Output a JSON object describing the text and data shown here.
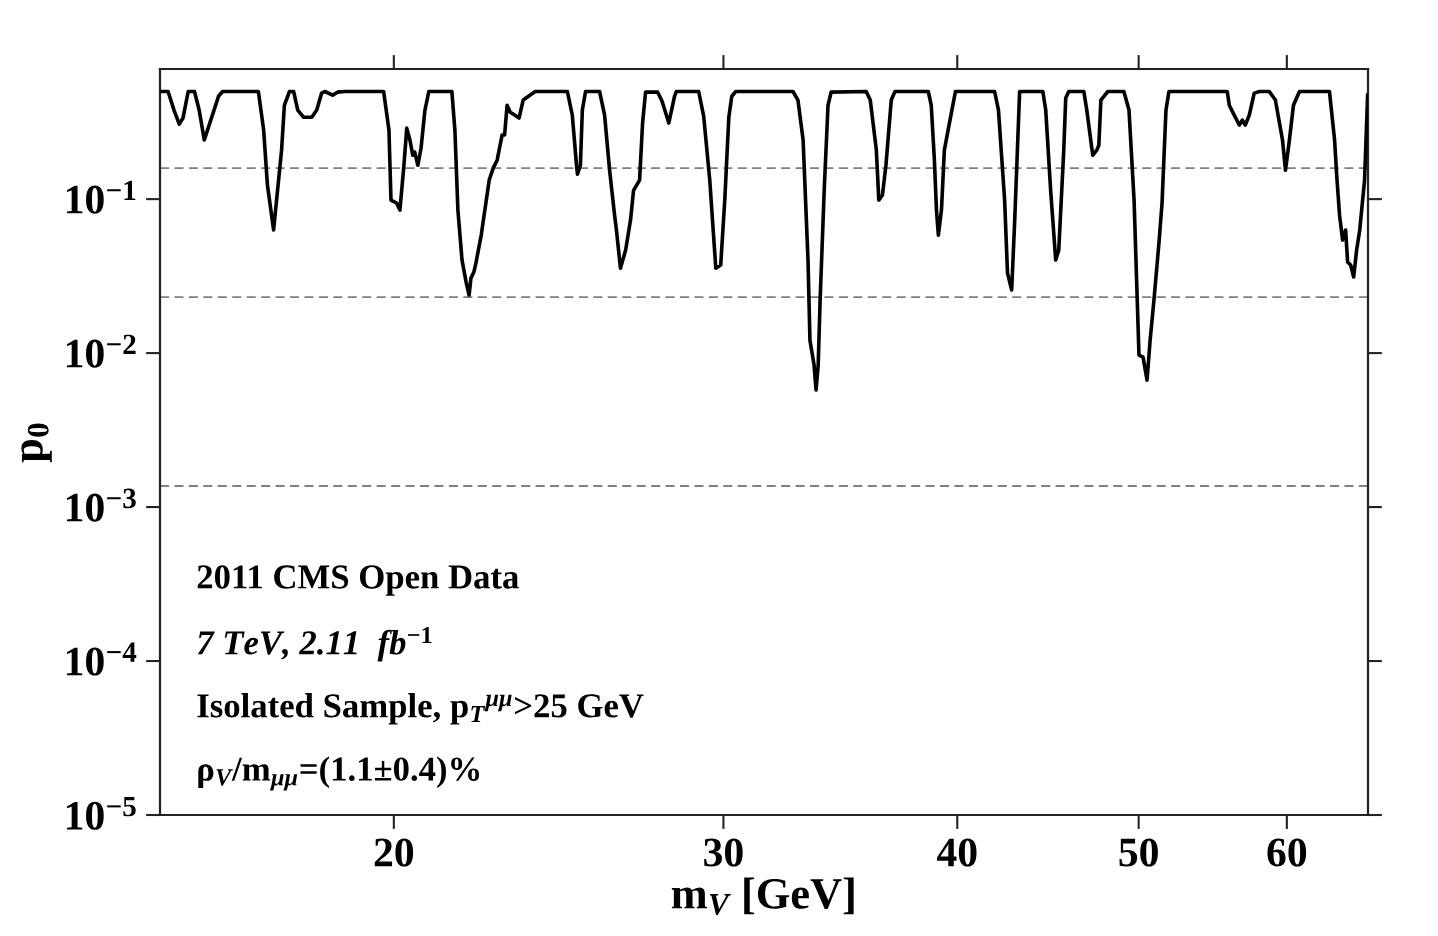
{
  "chart_data": {
    "type": "line",
    "xlabel": "m$_{V}$ [GeV]",
    "ylabel": "p$_{0}$",
    "log": "xy",
    "xlim": [
      15,
      66.3
    ],
    "ylim": [
      1e-05,
      0.7
    ],
    "xticks": [
      20,
      30,
      40,
      50,
      60
    ],
    "yticks": [
      {
        "value": 0.1,
        "label": "10$^{−1}$"
      },
      {
        "value": 0.01,
        "label": "10$^{−2}$"
      },
      {
        "value": 0.001,
        "label": "10$^{−3}$"
      },
      {
        "value": 0.0001,
        "label": "10$^{−4}$"
      },
      {
        "value": 1e-05,
        "label": "10$^{−5}$"
      }
    ],
    "grid": false,
    "legend": false,
    "marker": "none",
    "line_style": "solid",
    "ref_lines": [
      {
        "axis": "y",
        "value": 0.159,
        "color": "#808080",
        "line_style": "dashed"
      },
      {
        "axis": "y",
        "value": 0.0231,
        "color": "#808080",
        "line_style": "dashed"
      },
      {
        "axis": "y",
        "value": 0.00137,
        "color": "#808080",
        "line_style": "dashed"
      }
    ],
    "annotations": [
      "2011 CMS Open Data",
      "7 TeV, 2.11  fb$^{−1}$",
      "Isolated Sample, p$_{T}$$^{μμ}$>25 GeV",
      "ρ$_{V}$/m$_{μμ}$=(1.1±0.4)%"
    ],
    "series": [
      {
        "color": "#000000",
        "x": [
          15.0,
          15.15,
          15.26,
          15.36,
          15.43,
          15.53,
          15.65,
          15.74,
          15.84,
          15.98,
          16.12,
          16.2,
          16.93,
          17.04,
          17.12,
          17.25,
          17.42,
          17.48,
          17.59,
          17.68,
          17.77,
          17.9,
          18.08,
          18.19,
          18.3,
          18.37,
          18.55,
          18.66,
          18.83,
          19.75,
          19.88,
          19.93,
          20.07,
          20.15,
          20.25,
          20.32,
          20.4,
          20.47,
          20.52,
          20.6,
          20.68,
          20.78,
          20.88,
          21.48,
          21.56,
          21.64,
          21.75,
          21.86,
          21.94,
          21.99,
          22.07,
          22.13,
          22.27,
          22.49,
          22.6,
          22.71,
          22.85,
          22.92,
          22.99,
          23.08,
          23.25,
          23.33,
          23.45,
          23.8,
          24.76,
          24.91,
          25.04,
          25.07,
          25.16,
          25.22,
          25.32,
          25.76,
          25.92,
          26.08,
          26.24,
          26.3,
          26.43,
          26.6,
          26.76,
          26.86,
          27.06,
          27.16,
          27.26,
          27.67,
          27.8,
          27.84,
          28.05,
          28.25,
          28.31,
          29.1,
          29.28,
          29.5,
          29.72,
          29.9,
          30.05,
          30.2,
          30.31,
          30.46,
          32.68,
          32.88,
          33.09,
          33.29,
          33.37,
          33.54,
          33.62,
          33.71,
          33.79,
          33.96,
          34.12,
          34.25,
          35.76,
          35.94,
          36.21,
          36.32,
          36.48,
          36.64,
          36.88,
          37.05,
          38.6,
          38.74,
          38.89,
          38.99,
          39.08,
          39.23,
          39.37,
          39.57,
          39.91,
          41.88,
          42.08,
          42.4,
          42.55,
          42.77,
          42.93,
          43.19,
          44.44,
          44.6,
          44.87,
          45.15,
          45.32,
          45.6,
          45.71,
          45.88,
          46.74,
          46.91,
          47.2,
          47.26,
          47.49,
          47.61,
          47.73,
          48.14,
          49.1,
          49.41,
          49.72,
          50.02,
          50.27,
          50.52,
          50.71,
          50.95,
          51.27,
          51.46,
          51.71,
          51.9,
          55.76,
          55.9,
          56.24,
          56.59,
          56.8,
          57.01,
          57.29,
          57.64,
          58.01,
          58.72,
          59.16,
          59.68,
          59.9,
          60.19,
          60.49,
          60.94,
          63.23,
          63.63,
          63.79,
          64.02,
          64.26,
          64.5,
          64.66,
          64.9,
          65.14,
          65.38,
          65.63,
          66.02,
          66.27
        ],
        "values": [
          0.5,
          0.5,
          0.379,
          0.307,
          0.336,
          0.5,
          0.5,
          0.379,
          0.242,
          0.336,
          0.466,
          0.5,
          0.5,
          0.281,
          0.123,
          0.063,
          0.208,
          0.407,
          0.5,
          0.5,
          0.379,
          0.34,
          0.34,
          0.379,
          0.488,
          0.5,
          0.473,
          0.495,
          0.5,
          0.5,
          0.281,
          0.0986,
          0.0942,
          0.0849,
          0.166,
          0.289,
          0.242,
          0.193,
          0.202,
          0.166,
          0.214,
          0.379,
          0.5,
          0.5,
          0.281,
          0.0849,
          0.0402,
          0.0289,
          0.0238,
          0.0307,
          0.0336,
          0.039,
          0.0584,
          0.133,
          0.159,
          0.179,
          0.261,
          0.261,
          0.407,
          0.367,
          0.346,
          0.336,
          0.44,
          0.5,
          0.5,
          0.351,
          0.166,
          0.145,
          0.166,
          0.379,
          0.5,
          0.5,
          0.351,
          0.154,
          0.0787,
          0.063,
          0.0356,
          0.0467,
          0.0731,
          0.114,
          0.133,
          0.312,
          0.495,
          0.495,
          0.44,
          0.42,
          0.312,
          0.466,
          0.5,
          0.5,
          0.346,
          0.133,
          0.0356,
          0.0373,
          0.0986,
          0.34,
          0.466,
          0.5,
          0.5,
          0.44,
          0.242,
          0.0402,
          0.0121,
          0.00836,
          0.00576,
          0.00836,
          0.0221,
          0.114,
          0.407,
          0.495,
          0.5,
          0.44,
          0.208,
          0.0986,
          0.106,
          0.166,
          0.44,
          0.5,
          0.5,
          0.407,
          0.179,
          0.0849,
          0.0584,
          0.0849,
          0.208,
          0.289,
          0.5,
          0.5,
          0.379,
          0.0986,
          0.0331,
          0.0257,
          0.0731,
          0.5,
          0.5,
          0.379,
          0.114,
          0.0402,
          0.0467,
          0.208,
          0.453,
          0.5,
          0.5,
          0.379,
          0.214,
          0.193,
          0.208,
          0.224,
          0.44,
          0.5,
          0.5,
          0.379,
          0.0986,
          0.00971,
          0.00942,
          0.00668,
          0.0121,
          0.0221,
          0.0526,
          0.0942,
          0.379,
          0.5,
          0.5,
          0.407,
          0.351,
          0.303,
          0.326,
          0.303,
          0.351,
          0.488,
          0.5,
          0.5,
          0.44,
          0.242,
          0.154,
          0.242,
          0.407,
          0.5,
          0.5,
          0.242,
          0.145,
          0.0787,
          0.0542,
          0.063,
          0.039,
          0.0373,
          0.0312,
          0.0467,
          0.063,
          0.133,
          0.473
        ]
      }
    ]
  }
}
